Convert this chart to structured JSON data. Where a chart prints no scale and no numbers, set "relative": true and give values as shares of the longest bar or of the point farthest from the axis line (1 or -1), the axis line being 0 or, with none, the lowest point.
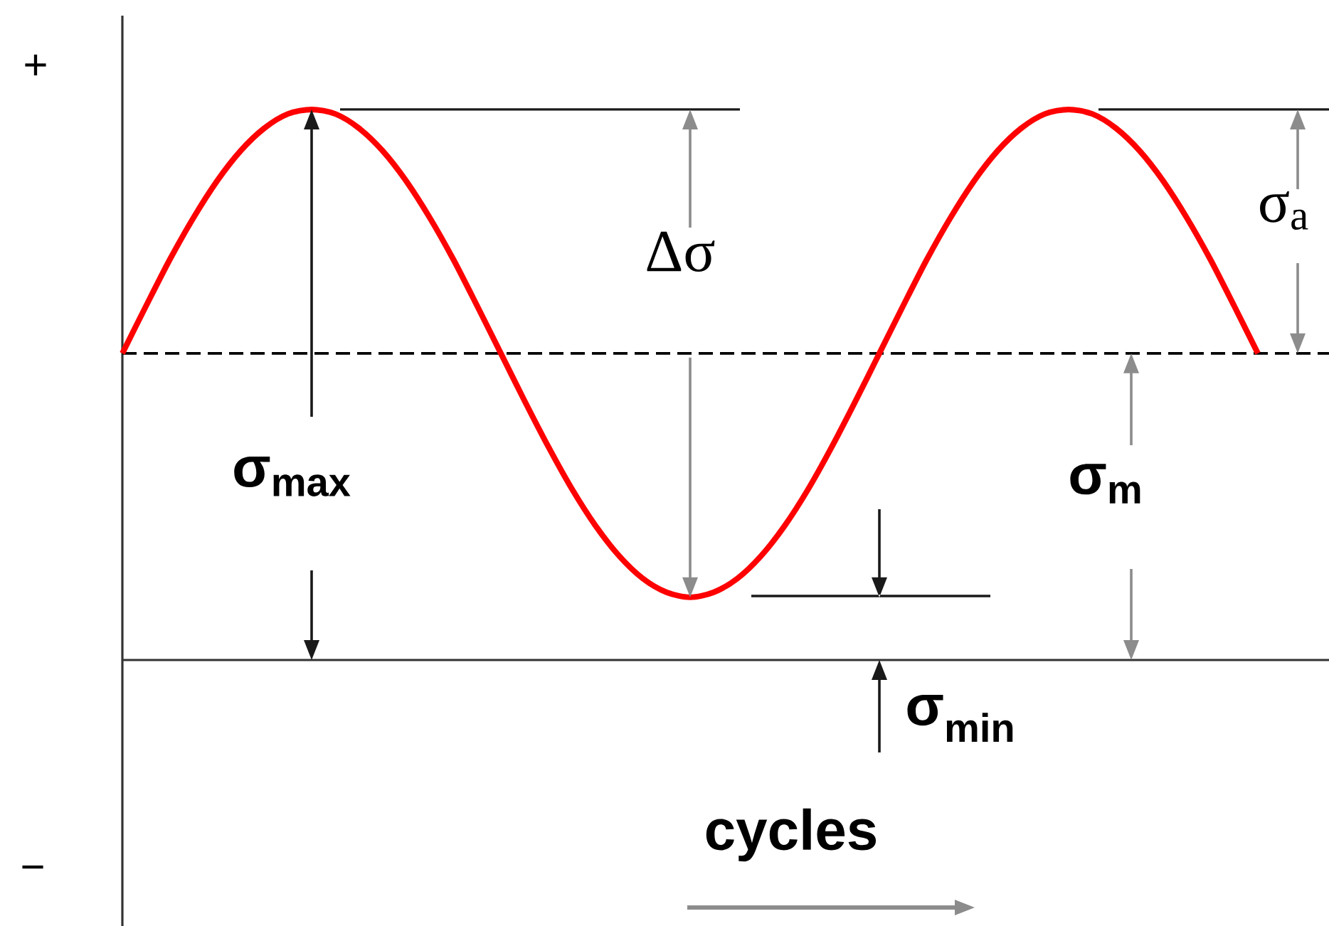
{
  "chart_data": {
    "type": "line",
    "relative": true,
    "xlabel": "cycles",
    "categories": [
      null,
      null,
      null,
      null,
      null,
      null,
      null,
      null,
      null,
      null,
      null,
      null,
      null,
      null,
      null,
      null,
      null,
      null,
      null,
      null,
      null,
      null,
      null,
      null,
      null,
      null,
      null,
      null,
      null,
      null,
      null,
      null,
      null,
      null,
      null,
      null,
      null,
      null,
      null,
      null,
      null,
      null,
      null,
      null,
      null,
      null,
      null,
      null,
      null
    ],
    "values": [
      0.557,
      0.643,
      0.727,
      0.803,
      0.87,
      0.925,
      0.966,
      0.992,
      1,
      0.992,
      0.966,
      0.925,
      0.87,
      0.803,
      0.727,
      0.643,
      0.557,
      0.471,
      0.388,
      0.311,
      0.244,
      0.189,
      0.148,
      0.123,
      0.114,
      0.123,
      0.148,
      0.189,
      0.244,
      0.311,
      0.388,
      0.471,
      0.557,
      0.643,
      0.727,
      0.803,
      0.87,
      0.925,
      0.966,
      0.992,
      1,
      0.992,
      0.966,
      0.925,
      0.87,
      0.803,
      0.727,
      0.643,
      0.557
    ],
    "color": "#ff0000",
    "ref_lines": [
      {
        "axis": "y",
        "value": 0.557,
        "line_style": "dashed",
        "color": "#000000"
      }
    ],
    "annotations": [
      "+",
      "−",
      "Δσ",
      "σ$_{a}$",
      "σ$_{max}$",
      "σ$_{m}$",
      "σ$_{min}$"
    ],
    "tick_labels": false
  }
}
